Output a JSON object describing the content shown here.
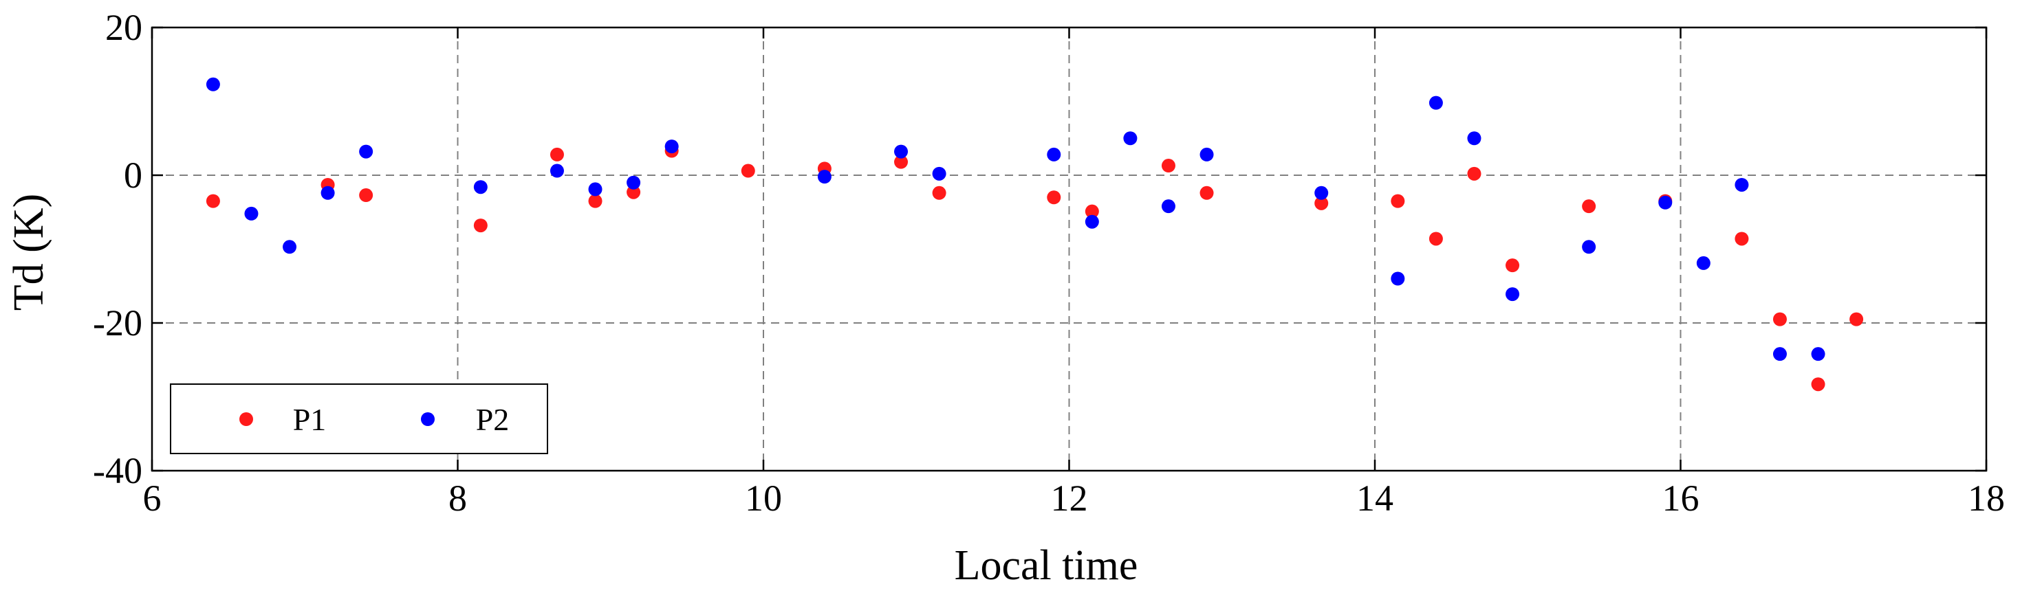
{
  "chart_data": {
    "type": "scatter",
    "title": "",
    "xlabel": "Local time",
    "ylabel": "Td (K)",
    "xlim": [
      6,
      18
    ],
    "ylim": [
      -40,
      20
    ],
    "xticks": [
      6,
      8,
      10,
      12,
      14,
      16,
      18
    ],
    "yticks": [
      -40,
      -20,
      0,
      20
    ],
    "xtick_labels": [
      "6",
      "8",
      "10",
      "12",
      "14",
      "16",
      "18"
    ],
    "ytick_labels": [
      "-40",
      "-20",
      "0",
      "20"
    ],
    "grid": true,
    "legend_placement": "lower-left",
    "series": [
      {
        "name": "P1",
        "color": "#ff1a1a",
        "points": [
          [
            6.4,
            -3.5
          ],
          [
            7.15,
            -1.3
          ],
          [
            7.4,
            -2.7
          ],
          [
            8.15,
            -6.8
          ],
          [
            8.65,
            2.8
          ],
          [
            8.9,
            -3.5
          ],
          [
            9.15,
            -2.3
          ],
          [
            9.4,
            3.3
          ],
          [
            9.9,
            0.6
          ],
          [
            10.4,
            0.9
          ],
          [
            10.9,
            1.8
          ],
          [
            11.15,
            -2.4
          ],
          [
            11.9,
            -3.0
          ],
          [
            12.15,
            -4.9
          ],
          [
            12.65,
            1.3
          ],
          [
            12.9,
            -2.4
          ],
          [
            13.65,
            -3.8
          ],
          [
            14.15,
            -3.5
          ],
          [
            14.4,
            -8.6
          ],
          [
            14.65,
            0.2
          ],
          [
            14.9,
            -12.2
          ],
          [
            15.4,
            -4.2
          ],
          [
            15.9,
            -3.5
          ],
          [
            16.4,
            -8.6
          ],
          [
            16.65,
            -19.5
          ],
          [
            16.9,
            -28.3
          ],
          [
            17.15,
            -19.5
          ]
        ]
      },
      {
        "name": "P2",
        "color": "#0000ff",
        "points": [
          [
            6.4,
            12.3
          ],
          [
            6.65,
            -5.2
          ],
          [
            6.9,
            -9.7
          ],
          [
            7.15,
            -2.4
          ],
          [
            7.4,
            3.2
          ],
          [
            8.15,
            -1.6
          ],
          [
            8.65,
            0.6
          ],
          [
            8.9,
            -1.9
          ],
          [
            9.15,
            -1.0
          ],
          [
            9.4,
            3.9
          ],
          [
            10.4,
            -0.2
          ],
          [
            10.9,
            3.2
          ],
          [
            11.15,
            0.2
          ],
          [
            11.9,
            2.8
          ],
          [
            12.15,
            -6.3
          ],
          [
            12.4,
            5.0
          ],
          [
            12.65,
            -4.2
          ],
          [
            12.9,
            2.8
          ],
          [
            13.65,
            -2.4
          ],
          [
            14.15,
            -14.0
          ],
          [
            14.4,
            9.8
          ],
          [
            14.65,
            5.0
          ],
          [
            14.9,
            -16.1
          ],
          [
            15.4,
            -9.7
          ],
          [
            15.9,
            -3.7
          ],
          [
            16.15,
            -11.9
          ],
          [
            16.4,
            -1.3
          ],
          [
            16.65,
            -24.2
          ],
          [
            16.9,
            -24.2
          ]
        ]
      }
    ]
  }
}
